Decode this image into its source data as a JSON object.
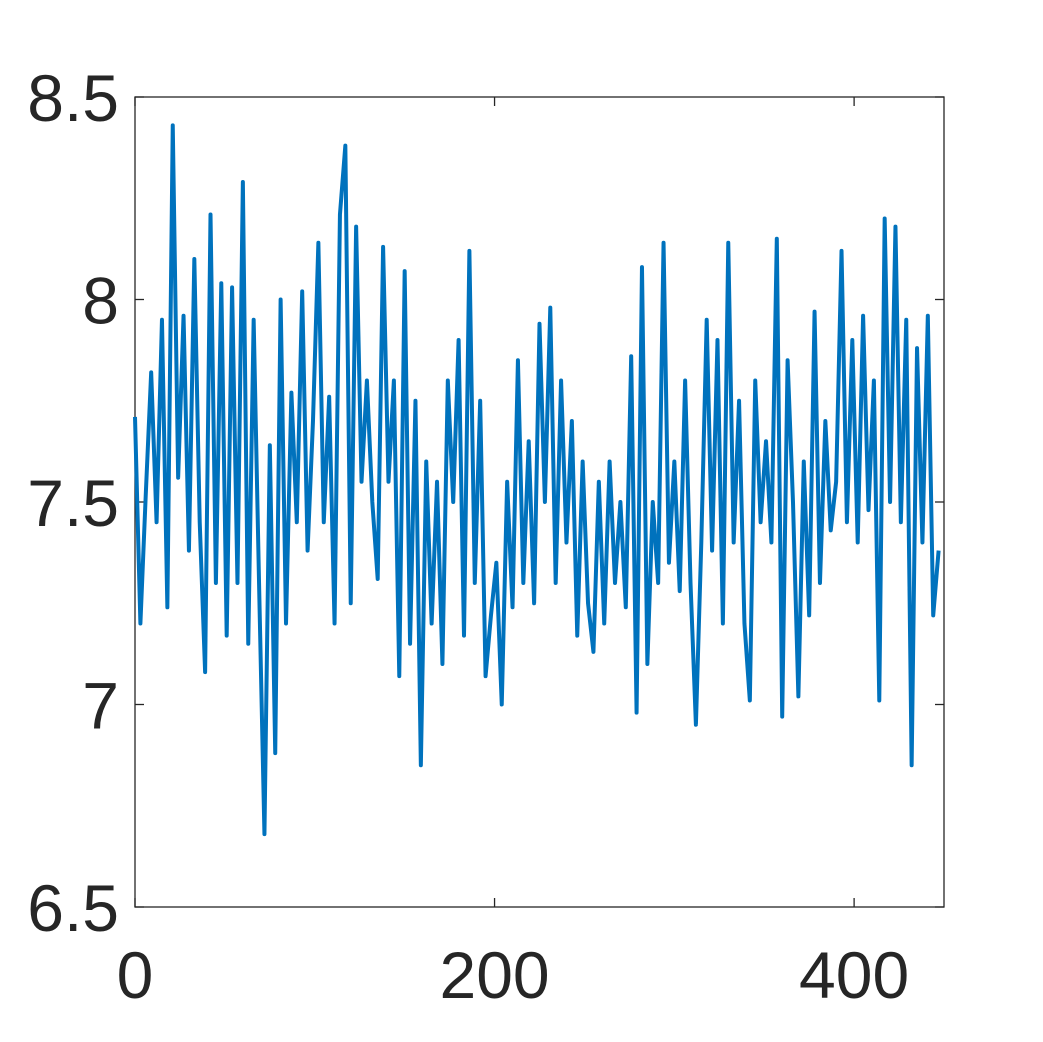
{
  "chart_data": {
    "type": "line",
    "x": [
      0,
      3,
      6,
      9,
      12,
      15,
      18,
      21,
      24,
      27,
      30,
      33,
      36,
      39,
      42,
      45,
      48,
      51,
      54,
      57,
      60,
      63,
      66,
      69,
      72,
      75,
      78,
      81,
      84,
      87,
      90,
      93,
      96,
      99,
      102,
      105,
      108,
      111,
      114,
      117,
      120,
      123,
      126,
      129,
      132,
      135,
      138,
      141,
      144,
      147,
      150,
      153,
      156,
      159,
      162,
      165,
      168,
      171,
      174,
      177,
      180,
      183,
      186,
      189,
      192,
      195,
      198,
      201,
      204,
      207,
      210,
      213,
      216,
      219,
      222,
      225,
      228,
      231,
      234,
      237,
      240,
      243,
      246,
      249,
      252,
      255,
      258,
      261,
      264,
      267,
      270,
      273,
      276,
      279,
      282,
      285,
      288,
      291,
      294,
      297,
      300,
      303,
      306,
      309,
      312,
      315,
      318,
      321,
      324,
      327,
      330,
      333,
      336,
      339,
      342,
      345,
      348,
      351,
      354,
      357,
      360,
      363,
      366,
      369,
      372,
      375,
      378,
      381,
      384,
      387,
      390,
      393,
      396,
      399,
      402,
      405,
      408,
      411,
      414,
      417,
      420,
      423,
      426,
      429,
      432,
      435,
      438,
      441,
      444,
      447
    ],
    "series": [
      {
        "color": "#0072bd",
        "values": [
          7.71,
          7.2,
          7.52,
          7.82,
          7.45,
          7.95,
          7.24,
          8.43,
          7.56,
          7.96,
          7.38,
          8.1,
          7.45,
          7.08,
          8.21,
          7.3,
          8.04,
          7.17,
          8.03,
          7.3,
          8.29,
          7.15,
          7.95,
          7.3,
          6.68,
          7.64,
          6.88,
          8.0,
          7.2,
          7.77,
          7.45,
          8.02,
          7.38,
          7.7,
          8.14,
          7.45,
          7.76,
          7.2,
          8.21,
          8.38,
          7.25,
          8.18,
          7.55,
          7.8,
          7.5,
          7.31,
          8.13,
          7.55,
          7.8,
          7.07,
          8.07,
          7.15,
          7.75,
          6.85,
          7.6,
          7.2,
          7.55,
          7.1,
          7.8,
          7.5,
          7.9,
          7.17,
          8.12,
          7.3,
          7.75,
          7.07,
          7.22,
          7.35,
          7.0,
          7.55,
          7.24,
          7.85,
          7.3,
          7.65,
          7.25,
          7.94,
          7.5,
          7.98,
          7.3,
          7.8,
          7.4,
          7.7,
          7.17,
          7.6,
          7.25,
          7.13,
          7.55,
          7.2,
          7.6,
          7.3,
          7.5,
          7.24,
          7.86,
          6.98,
          8.08,
          7.1,
          7.5,
          7.3,
          8.14,
          7.35,
          7.6,
          7.28,
          7.8,
          7.3,
          6.95,
          7.4,
          7.95,
          7.38,
          7.9,
          7.2,
          8.14,
          7.4,
          7.75,
          7.2,
          7.01,
          7.8,
          7.45,
          7.65,
          7.4,
          8.15,
          6.97,
          7.85,
          7.5,
          7.02,
          7.6,
          7.22,
          7.97,
          7.3,
          7.7,
          7.43,
          7.55,
          8.12,
          7.45,
          7.9,
          7.4,
          7.96,
          7.48,
          7.8,
          7.01,
          8.2,
          7.5,
          8.18,
          7.45,
          7.95,
          6.85,
          7.88,
          7.4,
          7.96,
          7.22,
          7.38
        ]
      }
    ],
    "xlim": [
      0,
      450
    ],
    "ylim": [
      6.5,
      8.5
    ],
    "xticks": [
      0,
      200,
      400
    ],
    "yticks": [
      6.5,
      7,
      7.5,
      8,
      8.5
    ]
  }
}
